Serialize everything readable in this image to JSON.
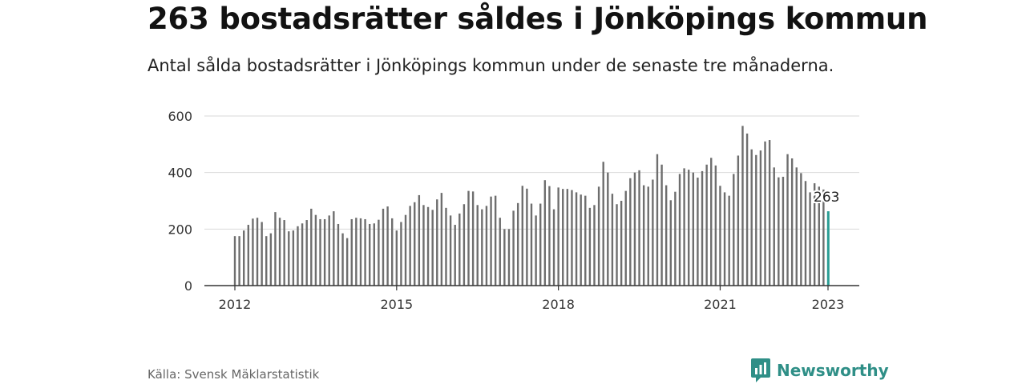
{
  "header": {
    "title": "263 bostadsrätter såldes i Jönköpings kommun",
    "subtitle": "Antal sålda bostadsrätter i Jönköpings kommun under de senaste tre månaderna."
  },
  "footer": {
    "source": "Källa: Svensk Mäklarstatistik",
    "brand": "Newsworthy",
    "brand_icon": "newsworthy-logo-icon"
  },
  "colors": {
    "bar": "#6e6e6e",
    "highlight": "#2a9d94",
    "grid": "#d9d9d9",
    "axis": "#333333",
    "brand": "#2f8f87"
  },
  "chart_data": {
    "type": "bar",
    "x_start": "2012-01",
    "x_end": "2023-01",
    "xticks": [
      "2012",
      "2015",
      "2018",
      "2021",
      "2023"
    ],
    "yticks": [
      "0",
      "200",
      "400",
      "600"
    ],
    "ylim": [
      0,
      600
    ],
    "grid": true,
    "highlight_label": "263",
    "values": [
      175,
      175,
      195,
      215,
      237,
      240,
      225,
      175,
      185,
      260,
      240,
      232,
      192,
      195,
      210,
      220,
      232,
      272,
      250,
      235,
      235,
      248,
      263,
      218,
      185,
      168,
      235,
      240,
      238,
      235,
      218,
      220,
      233,
      272,
      280,
      238,
      195,
      225,
      250,
      282,
      295,
      320,
      285,
      278,
      268,
      305,
      328,
      275,
      248,
      215,
      255,
      288,
      335,
      333,
      285,
      270,
      282,
      315,
      318,
      240,
      200,
      200,
      265,
      292,
      353,
      343,
      290,
      248,
      290,
      373,
      352,
      270,
      347,
      342,
      342,
      338,
      330,
      322,
      318,
      275,
      285,
      350,
      438,
      400,
      325,
      288,
      300,
      335,
      380,
      400,
      408,
      355,
      350,
      375,
      465,
      428,
      355,
      302,
      332,
      395,
      415,
      410,
      400,
      382,
      405,
      428,
      452,
      425,
      353,
      330,
      318,
      395,
      460,
      565,
      538,
      482,
      462,
      478,
      510,
      515,
      418,
      383,
      385,
      465,
      450,
      418,
      398,
      370,
      330,
      362,
      350,
      340,
      263
    ]
  }
}
